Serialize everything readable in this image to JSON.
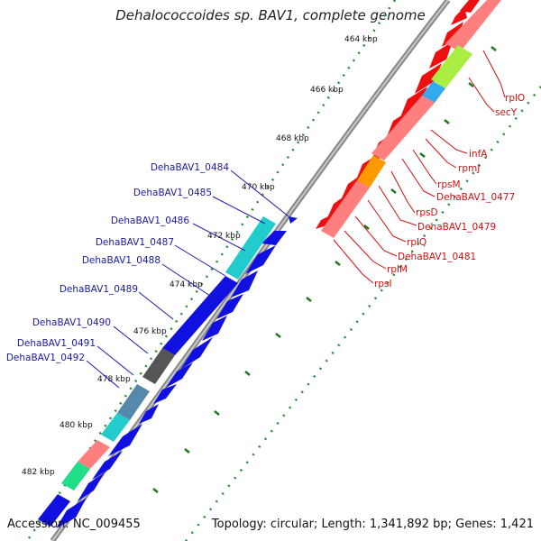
{
  "title": "Dehalococcoides sp. BAV1, complete genome",
  "footer": {
    "accession_label": "Accession:",
    "accession": "NC_009455",
    "topology_text": "Topology: circular; Length: 1,341,892 bp; Genes: 1,421"
  },
  "colors": {
    "forward_gene": "#1010e0",
    "reverse_gene": "#ee1010",
    "ribbon": "#808080",
    "tick_dots": "#2a8a2a",
    "label_blue": "#1a1aa6",
    "label_red": "#cc1111",
    "band_red": "#ff7f7f",
    "band_green": "#aaee44",
    "band_blue": "#33aaee",
    "band_orange": "#ff9900",
    "band_cyan": "#22cccc",
    "band_gray": "#555555",
    "band_steel": "#5588aa",
    "band_seagreen": "#22dd88"
  },
  "kbp_labels": [
    "464 kbp",
    "466 kbp",
    "468 kbp",
    "470 kbp",
    "472 kbp",
    "474 kbp",
    "476 kbp",
    "478 kbp",
    "480 kbp",
    "482 kbp"
  ],
  "left_labels": [
    "DehaBAV1_0484",
    "DehaBAV1_0485",
    "DehaBAV1_0486",
    "DehaBAV1_0487",
    "DehaBAV1_0488",
    "DehaBAV1_0489",
    "DehaBAV1_0490",
    "DehaBAV1_0491",
    "DehaBAV1_0492"
  ],
  "right_labels": [
    "rplO",
    "secY",
    "infA",
    "rpmJ",
    "rpsM",
    "DehaBAV1_0477",
    "rpsD",
    "DehaBAV1_0479",
    "rplQ",
    "DehaBAV1_0481",
    "rplM",
    "rpsI"
  ]
}
